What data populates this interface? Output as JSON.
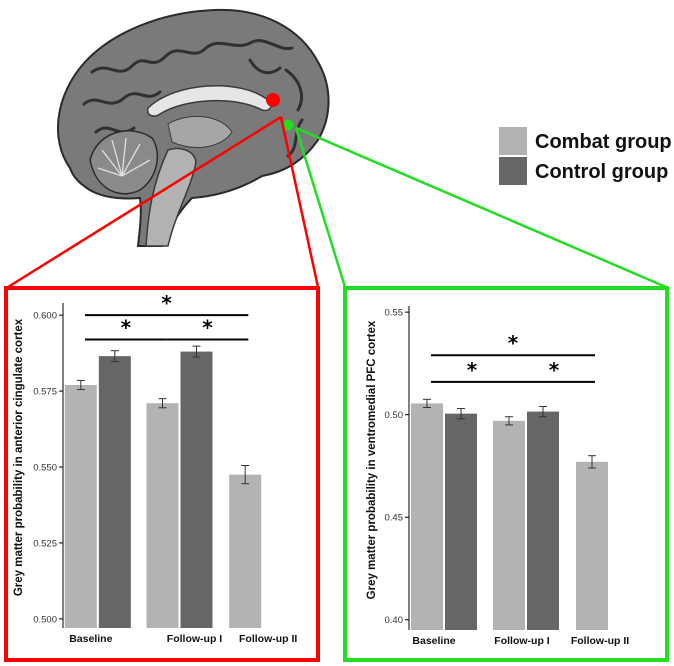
{
  "legend": {
    "items": [
      {
        "label": "Combat group",
        "color": "#b3b3b3"
      },
      {
        "label": "Control group",
        "color": "#666666"
      }
    ],
    "placement": "top-right"
  },
  "colors": {
    "acc_frame": "#ff0000",
    "vmpfc_frame": "#22dd22",
    "acc_marker": "#ff0000",
    "vmpfc_marker": "#22dd22",
    "combat": "#b3b3b3",
    "control": "#666666"
  },
  "brain_image": {
    "icon": "brain-sagittal-slice"
  },
  "chart_data": [
    {
      "type": "bar",
      "title": "",
      "xlabel": "",
      "ylabel": "Grey matter probability in anterior cingulate cortex",
      "categories": [
        "Baseline",
        "Follow-up I",
        "Follow-up II"
      ],
      "ylim": [
        0.497,
        0.604
      ],
      "yticks": [
        0.5,
        0.525,
        0.55,
        0.575,
        0.6
      ],
      "yticklabels": [
        "0.500",
        "0.525",
        "0.550",
        "0.575",
        "0.600"
      ],
      "series": [
        {
          "name": "Combat group",
          "values": [
            0.577,
            0.571,
            0.5475
          ],
          "errors": [
            0.0015,
            0.0015,
            0.003
          ]
        },
        {
          "name": "Control group",
          "values": [
            0.5865,
            0.588,
            null
          ],
          "errors": [
            0.0018,
            0.0018,
            null
          ]
        }
      ],
      "significance": [
        {
          "from": "Baseline",
          "to": "Follow-up II",
          "label": "*",
          "y": 0.6
        },
        {
          "from": "Baseline",
          "to": "Follow-up I",
          "label": "*",
          "y": 0.592
        },
        {
          "from": "Follow-up I",
          "to": "Follow-up II",
          "label": "*",
          "y": 0.592
        }
      ],
      "grid": false
    },
    {
      "type": "bar",
      "title": "",
      "xlabel": "",
      "ylabel": "Grey matter probability in ventromedial PFC cortex",
      "categories": [
        "Baseline",
        "Follow-up I",
        "Follow-up II"
      ],
      "ylim": [
        0.395,
        0.553
      ],
      "yticks": [
        0.4,
        0.45,
        0.5,
        0.55
      ],
      "yticklabels": [
        "0.40",
        "0.45",
        "0.50",
        "0.55"
      ],
      "series": [
        {
          "name": "Combat group",
          "values": [
            0.5055,
            0.497,
            0.477
          ],
          "errors": [
            0.002,
            0.002,
            0.003
          ]
        },
        {
          "name": "Control group",
          "values": [
            0.5005,
            0.5015,
            null
          ],
          "errors": [
            0.0025,
            0.0025,
            null
          ]
        }
      ],
      "significance": [
        {
          "from": "Baseline",
          "to": "Follow-up II",
          "label": "*",
          "y": 0.529
        },
        {
          "from": "Baseline",
          "to": "Follow-up I",
          "label": "*",
          "y": 0.516
        },
        {
          "from": "Follow-up I",
          "to": "Follow-up II",
          "label": "*",
          "y": 0.516
        }
      ],
      "grid": false
    }
  ]
}
